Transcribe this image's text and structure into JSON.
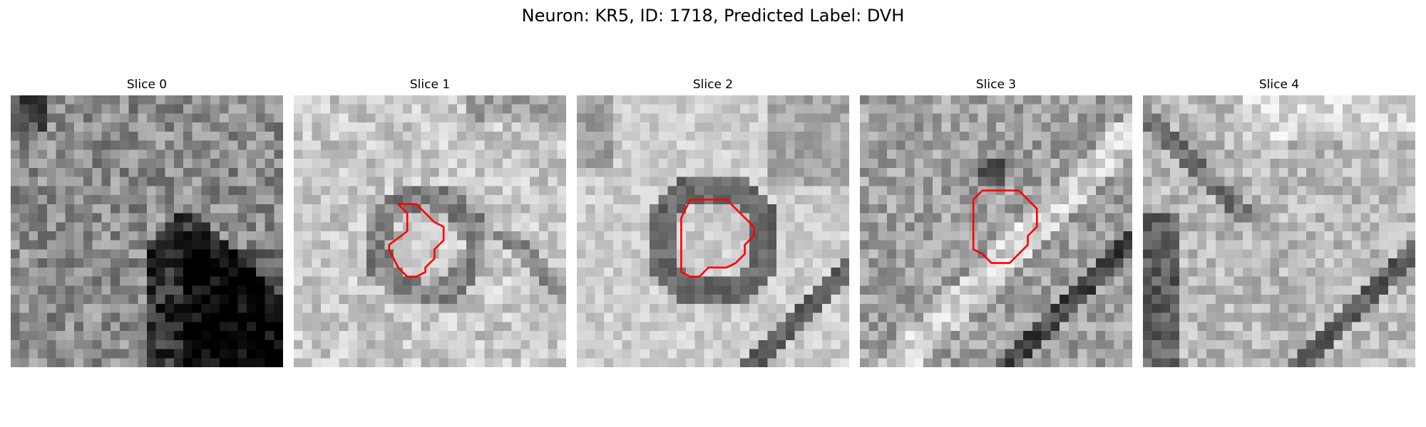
{
  "figure": {
    "title": "Neuron: KR5, ID: 1718, Predicted Label: DVH",
    "colormap": "gray",
    "grid_size": 30,
    "roi_color": "#ff0000"
  },
  "panels": [
    {
      "title": "Slice 0",
      "has_roi": false,
      "roi_points": []
    },
    {
      "title": "Slice 1",
      "has_roi": true,
      "roi_points": [
        [
          11.5,
          12
        ],
        [
          13.5,
          12
        ],
        [
          14.5,
          13
        ],
        [
          15.5,
          14
        ],
        [
          16.5,
          14.5
        ],
        [
          16.5,
          16
        ],
        [
          15.5,
          17
        ],
        [
          15.5,
          18
        ],
        [
          14.5,
          19
        ],
        [
          14.5,
          19.5
        ],
        [
          13.5,
          20
        ],
        [
          12.5,
          20
        ],
        [
          11.5,
          19
        ],
        [
          11,
          18
        ],
        [
          10.5,
          17
        ],
        [
          10.5,
          16.5
        ],
        [
          12.5,
          15
        ],
        [
          12.5,
          13
        ]
      ]
    },
    {
      "title": "Slice 2",
      "has_roi": true,
      "roi_points": [
        [
          12.5,
          11.5
        ],
        [
          16.5,
          11.5
        ],
        [
          17.5,
          12.5
        ],
        [
          18.5,
          13.5
        ],
        [
          19.5,
          14.5
        ],
        [
          19.5,
          15.5
        ],
        [
          18.5,
          16.5
        ],
        [
          18.5,
          17.5
        ],
        [
          17.5,
          18.5
        ],
        [
          16.5,
          19
        ],
        [
          14.5,
          19
        ],
        [
          13.5,
          20
        ],
        [
          12.5,
          20
        ],
        [
          11.5,
          19.5
        ],
        [
          11.5,
          13.5
        ]
      ]
    },
    {
      "title": "Slice 3",
      "has_roi": true,
      "roi_points": [
        [
          13.5,
          10.5
        ],
        [
          17.5,
          10.5
        ],
        [
          18.5,
          11.5
        ],
        [
          19.5,
          12.5
        ],
        [
          19.5,
          14.5
        ],
        [
          18.5,
          15.5
        ],
        [
          18.5,
          16.5
        ],
        [
          17.5,
          17.5
        ],
        [
          16.5,
          18.5
        ],
        [
          14.5,
          18.5
        ],
        [
          13.5,
          17.5
        ],
        [
          12.5,
          17
        ],
        [
          12.5,
          11.5
        ]
      ]
    },
    {
      "title": "Slice 4",
      "has_roi": false,
      "roi_points": []
    }
  ]
}
